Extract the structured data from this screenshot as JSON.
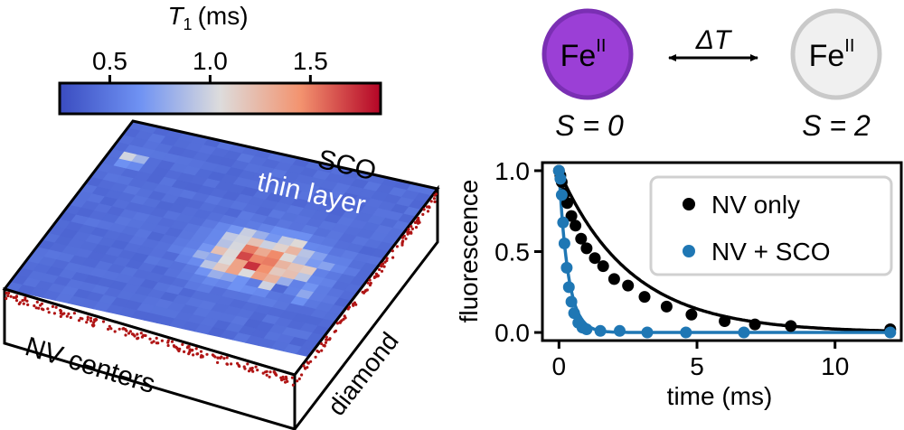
{
  "colorbar": {
    "title_symbol": "T",
    "title_subscript": "1",
    "title_unit": "(ms)",
    "tick_labels": [
      "0.5",
      "1.0",
      "1.5"
    ],
    "tick_values": [
      0.5,
      1.0,
      1.5
    ],
    "range": [
      0.25,
      1.85
    ]
  },
  "heatmap_labels": {
    "top_line1": "SCO",
    "top_line2": "thin layer",
    "front": "NV centers",
    "side": "diamond"
  },
  "spin_states": {
    "left": {
      "symbol": "Fe",
      "superscript": "II",
      "spin": "S = 0",
      "fill": "#9b3fd6",
      "stroke": "#7a2fb3"
    },
    "right": {
      "symbol": "Fe",
      "superscript": "II",
      "spin": "S = 2",
      "fill": "#f0f0f0",
      "stroke": "#c9c9c9"
    },
    "arrow_label": "ΔT"
  },
  "chart_data": {
    "type": "scatter",
    "xlabel": "time (ms)",
    "ylabel": "fluorescence",
    "xlim": [
      -0.6,
      12.4
    ],
    "ylim": [
      -0.05,
      1.05
    ],
    "xticks": [
      0,
      5,
      10
    ],
    "yticks": [
      0.0,
      0.5,
      1.0
    ],
    "xtick_labels": [
      "0",
      "5",
      "10"
    ],
    "ytick_labels": [
      "0.0",
      "0.5",
      "1.0"
    ],
    "legend_position": "top-right",
    "series": [
      {
        "name": "NV only",
        "color": "#000000",
        "x": [
          0.0,
          0.05,
          0.1,
          0.2,
          0.3,
          0.45,
          0.6,
          0.8,
          1.0,
          1.3,
          1.6,
          2.0,
          2.5,
          3.1,
          3.9,
          4.8,
          6.0,
          7.1,
          8.4,
          12.0
        ],
        "y": [
          1.0,
          0.97,
          0.93,
          0.86,
          0.8,
          0.72,
          0.66,
          0.58,
          0.52,
          0.46,
          0.41,
          0.33,
          0.29,
          0.22,
          0.16,
          0.11,
          0.07,
          0.05,
          0.04,
          0.02
        ]
      },
      {
        "name": "NV + SCO",
        "color": "#1f77b4",
        "x": [
          0.0,
          0.05,
          0.1,
          0.15,
          0.2,
          0.28,
          0.36,
          0.45,
          0.55,
          0.7,
          0.85,
          1.0,
          1.5,
          2.2,
          3.2,
          4.6,
          6.7,
          12.0
        ],
        "y": [
          1.0,
          0.95,
          0.85,
          0.68,
          0.55,
          0.4,
          0.28,
          0.19,
          0.12,
          0.06,
          0.03,
          0.02,
          0.01,
          0.01,
          0.0,
          0.0,
          0.0,
          0.0
        ]
      }
    ],
    "fits": [
      {
        "series": "NV only",
        "model": "exponential",
        "tau_ms": 2.6
      },
      {
        "series": "NV + SCO",
        "model": "exponential",
        "tau_ms": 0.33
      }
    ]
  }
}
